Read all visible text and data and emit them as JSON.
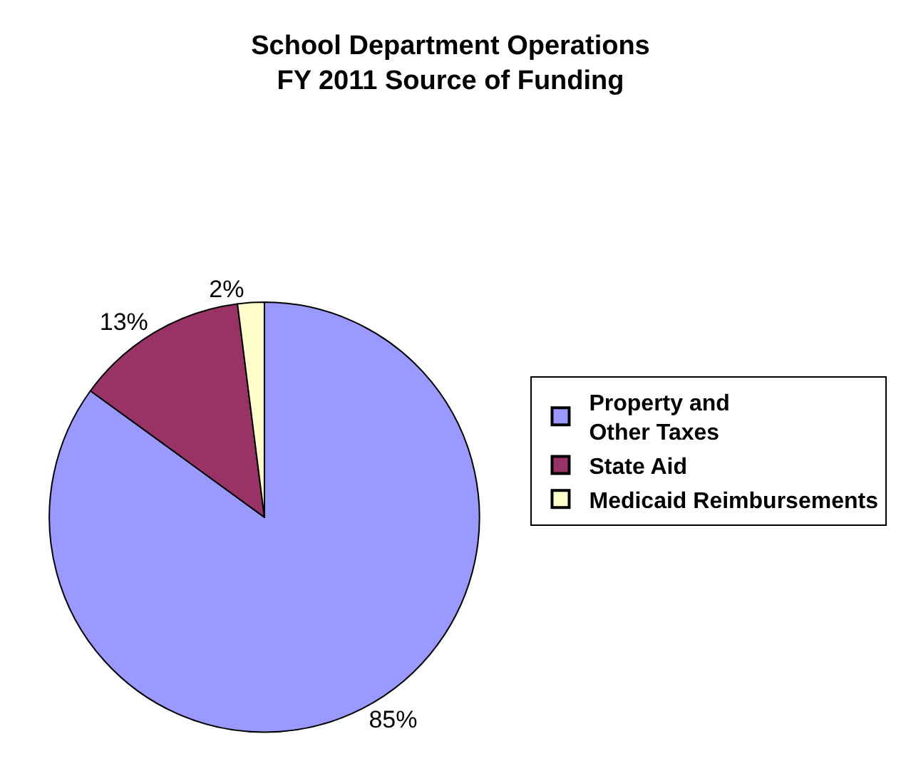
{
  "chart_data": {
    "type": "pie",
    "title": "School Department Operations\nFY 2011 Source of Funding",
    "categories": [
      "Property and Other Taxes",
      "State Aid",
      "Medicaid Reimbursements"
    ],
    "values": [
      85,
      13,
      2
    ],
    "colors": [
      "#9999ff",
      "#993366",
      "#ffffcc"
    ],
    "value_labels": [
      "85%",
      "13%",
      "2%"
    ],
    "legend": "right"
  }
}
